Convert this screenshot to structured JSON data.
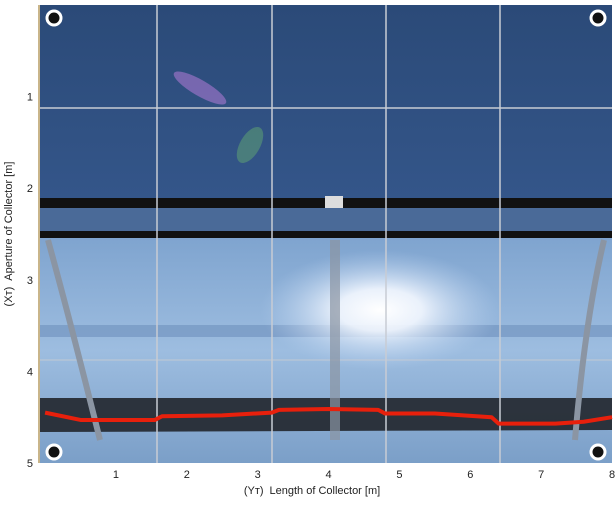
{
  "chart_data": {
    "type": "line",
    "xlabel_symbol": "(Yᴛ)",
    "xlabel": "Length of Collector [m]",
    "ylabel_symbol": "(Xᴛ)",
    "ylabel": "Aperture of Collector [m]",
    "x": [
      0,
      0.5,
      1.0,
      1.55,
      1.65,
      2.5,
      3.2,
      3.3,
      4.0,
      4.7,
      4.8,
      5.5,
      6.3,
      6.4,
      7.2,
      7.6,
      8.0
    ],
    "series": [
      {
        "color": "#e8200c",
        "values": [
          4.45,
          4.53,
          4.53,
          4.53,
          4.49,
          4.48,
          4.45,
          4.42,
          4.41,
          4.42,
          4.46,
          4.46,
          4.5,
          4.57,
          4.57,
          4.55,
          4.5
        ]
      }
    ],
    "xlim": [
      -0.1,
      8
    ],
    "ylim": [
      0,
      5
    ],
    "xticks": [
      1,
      2,
      3,
      4,
      5,
      6,
      7,
      8
    ],
    "yticks": [
      1,
      2,
      3,
      4,
      5
    ]
  }
}
